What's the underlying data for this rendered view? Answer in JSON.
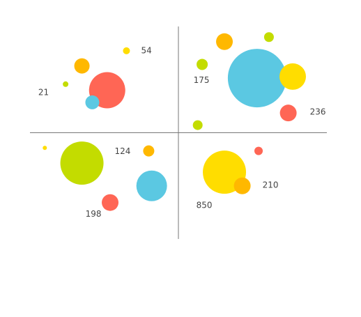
{
  "chart_data": {
    "type": "bubble",
    "xlim": [
      -10,
      10
    ],
    "ylim": [
      -7,
      7
    ],
    "x": [
      -3.5,
      -6.5,
      -7.6,
      -4.8,
      -5.8,
      3.1,
      6.1,
      1.6,
      5.3,
      7.7,
      7.4,
      1.3,
      -9.0,
      -6.5,
      -2.0,
      -1.8,
      -4.6,
      3.1,
      4.3,
      5.4
    ],
    "values": [
      5.4,
      4.4,
      3.2,
      2.8,
      2.0,
      6.0,
      6.3,
      4.5,
      3.6,
      3.7,
      1.3,
      0.5,
      -1.0,
      -2.0,
      -1.2,
      -3.5,
      -4.6,
      -2.6,
      -3.5,
      -1.2
    ],
    "sizes": [
      5,
      11,
      4,
      26,
      10,
      12,
      7,
      8,
      42,
      19,
      12,
      7,
      3,
      31,
      8,
      22,
      12,
      31,
      12,
      6
    ],
    "colors": [
      "#ffdd00",
      "#ffb800",
      "#c3dc00",
      "#ff6655",
      "#5bc8e2",
      "#ffb800",
      "#c3dc00",
      "#c3dc00",
      "#5bc8e2",
      "#ffdd00",
      "#ff6655",
      "#c3dc00",
      "#ffdd00",
      "#c3dc00",
      "#ffb800",
      "#5bc8e2",
      "#ff6655",
      "#ffdd00",
      "#ffb800",
      "#ff6655"
    ],
    "labels": [
      54,
      null,
      21,
      null,
      null,
      null,
      null,
      175,
      null,
      null,
      236,
      null,
      null,
      null,
      124,
      null,
      198,
      850,
      210,
      null
    ]
  }
}
